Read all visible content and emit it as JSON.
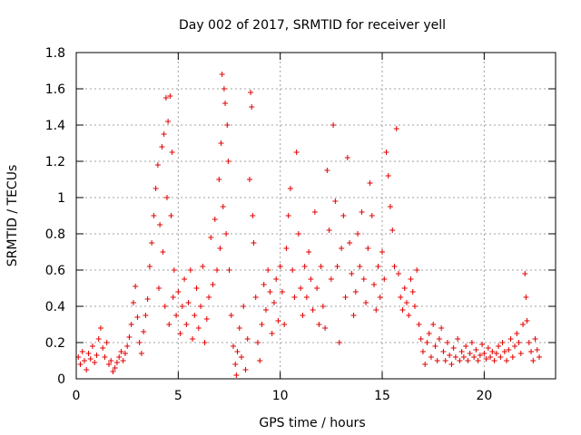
{
  "chart_data": {
    "type": "scatter",
    "title": "Day 002 of 2017, SRMTID for receiver yell",
    "xlabel": "GPS time / hours",
    "ylabel": "SRMTID / TECUs",
    "xlim": [
      0,
      23.5
    ],
    "ylim": [
      0,
      1.8
    ],
    "xticks": [
      0,
      5,
      10,
      15,
      20
    ],
    "xtick_labels": [
      "0",
      "5",
      "10",
      "15",
      "20"
    ],
    "yticks": [
      0,
      0.2,
      0.4,
      0.6,
      0.8,
      1,
      1.2,
      1.4,
      1.6,
      1.8
    ],
    "ytick_labels": [
      "0",
      "0.2",
      "0.4",
      "0.6",
      "0.8",
      "1",
      "1.2",
      "1.4",
      "1.6",
      "1.8"
    ],
    "grid": true,
    "marker": "+",
    "color": "#e00000",
    "series": [
      {
        "name": "SRMTID",
        "points": [
          [
            0.1,
            0.12
          ],
          [
            0.2,
            0.08
          ],
          [
            0.3,
            0.15
          ],
          [
            0.4,
            0.1
          ],
          [
            0.5,
            0.05
          ],
          [
            0.6,
            0.14
          ],
          [
            0.7,
            0.11
          ],
          [
            0.8,
            0.18
          ],
          [
            0.9,
            0.09
          ],
          [
            1.0,
            0.13
          ],
          [
            1.1,
            0.22
          ],
          [
            1.2,
            0.28
          ],
          [
            1.3,
            0.17
          ],
          [
            1.4,
            0.12
          ],
          [
            1.5,
            0.2
          ],
          [
            1.6,
            0.08
          ],
          [
            1.7,
            0.1
          ],
          [
            1.8,
            0.04
          ],
          [
            1.9,
            0.06
          ],
          [
            2.0,
            0.09
          ],
          [
            2.1,
            0.12
          ],
          [
            2.2,
            0.15
          ],
          [
            2.3,
            0.1
          ],
          [
            2.4,
            0.14
          ],
          [
            2.5,
            0.18
          ],
          [
            2.6,
            0.23
          ],
          [
            2.7,
            0.3
          ],
          [
            2.8,
            0.42
          ],
          [
            2.9,
            0.51
          ],
          [
            3.0,
            0.34
          ],
          [
            3.1,
            0.2
          ],
          [
            3.2,
            0.14
          ],
          [
            3.3,
            0.26
          ],
          [
            3.4,
            0.35
          ],
          [
            3.5,
            0.44
          ],
          [
            3.6,
            0.62
          ],
          [
            3.7,
            0.75
          ],
          [
            3.8,
            0.9
          ],
          [
            3.9,
            1.05
          ],
          [
            4.0,
            1.18
          ],
          [
            4.05,
            0.5
          ],
          [
            4.1,
            0.85
          ],
          [
            4.2,
            1.28
          ],
          [
            4.25,
            0.7
          ],
          [
            4.3,
            1.35
          ],
          [
            4.35,
            0.4
          ],
          [
            4.4,
            1.55
          ],
          [
            4.45,
            1.0
          ],
          [
            4.5,
            1.42
          ],
          [
            4.55,
            0.3
          ],
          [
            4.6,
            1.56
          ],
          [
            4.65,
            0.9
          ],
          [
            4.7,
            1.25
          ],
          [
            4.75,
            0.45
          ],
          [
            4.8,
            0.6
          ],
          [
            4.9,
            0.35
          ],
          [
            5.0,
            0.48
          ],
          [
            5.1,
            0.25
          ],
          [
            5.2,
            0.4
          ],
          [
            5.3,
            0.55
          ],
          [
            5.4,
            0.3
          ],
          [
            5.5,
            0.42
          ],
          [
            5.6,
            0.6
          ],
          [
            5.7,
            0.22
          ],
          [
            5.8,
            0.35
          ],
          [
            5.9,
            0.5
          ],
          [
            6.0,
            0.28
          ],
          [
            6.1,
            0.4
          ],
          [
            6.2,
            0.62
          ],
          [
            6.3,
            0.2
          ],
          [
            6.4,
            0.33
          ],
          [
            6.5,
            0.45
          ],
          [
            6.6,
            0.78
          ],
          [
            6.7,
            0.52
          ],
          [
            6.8,
            0.88
          ],
          [
            6.9,
            0.6
          ],
          [
            7.0,
            1.1
          ],
          [
            7.05,
            0.72
          ],
          [
            7.1,
            1.3
          ],
          [
            7.15,
            1.68
          ],
          [
            7.2,
            0.95
          ],
          [
            7.25,
            1.6
          ],
          [
            7.3,
            1.52
          ],
          [
            7.35,
            0.8
          ],
          [
            7.4,
            1.4
          ],
          [
            7.45,
            1.2
          ],
          [
            7.5,
            0.6
          ],
          [
            7.6,
            0.35
          ],
          [
            7.7,
            0.18
          ],
          [
            7.8,
            0.08
          ],
          [
            7.85,
            0.02
          ],
          [
            7.9,
            0.15
          ],
          [
            8.0,
            0.28
          ],
          [
            8.1,
            0.12
          ],
          [
            8.2,
            0.4
          ],
          [
            8.3,
            0.05
          ],
          [
            8.4,
            0.22
          ],
          [
            8.5,
            1.1
          ],
          [
            8.55,
            1.58
          ],
          [
            8.6,
            1.5
          ],
          [
            8.65,
            0.9
          ],
          [
            8.7,
            0.75
          ],
          [
            8.8,
            0.45
          ],
          [
            8.9,
            0.2
          ],
          [
            9.0,
            0.1
          ],
          [
            9.1,
            0.3
          ],
          [
            9.2,
            0.52
          ],
          [
            9.3,
            0.38
          ],
          [
            9.4,
            0.6
          ],
          [
            9.5,
            0.48
          ],
          [
            9.6,
            0.25
          ],
          [
            9.7,
            0.42
          ],
          [
            9.8,
            0.55
          ],
          [
            9.9,
            0.32
          ],
          [
            10.0,
            0.62
          ],
          [
            10.1,
            0.48
          ],
          [
            10.2,
            0.3
          ],
          [
            10.3,
            0.72
          ],
          [
            10.4,
            0.9
          ],
          [
            10.5,
            1.05
          ],
          [
            10.6,
            0.6
          ],
          [
            10.7,
            0.45
          ],
          [
            10.8,
            1.25
          ],
          [
            10.9,
            0.8
          ],
          [
            11.0,
            0.5
          ],
          [
            11.1,
            0.35
          ],
          [
            11.2,
            0.62
          ],
          [
            11.3,
            0.45
          ],
          [
            11.4,
            0.7
          ],
          [
            11.5,
            0.55
          ],
          [
            11.6,
            0.38
          ],
          [
            11.7,
            0.92
          ],
          [
            11.8,
            0.5
          ],
          [
            11.9,
            0.3
          ],
          [
            12.0,
            0.62
          ],
          [
            12.1,
            0.4
          ],
          [
            12.2,
            0.28
          ],
          [
            12.3,
            1.15
          ],
          [
            12.4,
            0.82
          ],
          [
            12.5,
            0.55
          ],
          [
            12.6,
            1.4
          ],
          [
            12.7,
            0.98
          ],
          [
            12.8,
            0.62
          ],
          [
            12.9,
            0.2
          ],
          [
            13.0,
            0.72
          ],
          [
            13.1,
            0.9
          ],
          [
            13.2,
            0.45
          ],
          [
            13.3,
            1.22
          ],
          [
            13.4,
            0.75
          ],
          [
            13.5,
            0.58
          ],
          [
            13.6,
            0.35
          ],
          [
            13.7,
            0.48
          ],
          [
            13.8,
            0.8
          ],
          [
            13.9,
            0.62
          ],
          [
            14.0,
            0.92
          ],
          [
            14.1,
            0.55
          ],
          [
            14.2,
            0.42
          ],
          [
            14.3,
            0.72
          ],
          [
            14.4,
            1.08
          ],
          [
            14.5,
            0.9
          ],
          [
            14.6,
            0.52
          ],
          [
            14.7,
            0.38
          ],
          [
            14.8,
            0.62
          ],
          [
            14.9,
            0.45
          ],
          [
            15.0,
            0.7
          ],
          [
            15.1,
            0.55
          ],
          [
            15.2,
            1.25
          ],
          [
            15.3,
            1.12
          ],
          [
            15.4,
            0.95
          ],
          [
            15.5,
            0.82
          ],
          [
            15.6,
            0.62
          ],
          [
            15.7,
            1.38
          ],
          [
            15.8,
            0.58
          ],
          [
            15.9,
            0.45
          ],
          [
            16.0,
            0.38
          ],
          [
            16.1,
            0.5
          ],
          [
            16.2,
            0.42
          ],
          [
            16.3,
            0.35
          ],
          [
            16.4,
            0.55
          ],
          [
            16.5,
            0.48
          ],
          [
            16.6,
            0.4
          ],
          [
            16.7,
            0.6
          ],
          [
            16.8,
            0.3
          ],
          [
            16.9,
            0.22
          ],
          [
            17.0,
            0.15
          ],
          [
            17.1,
            0.08
          ],
          [
            17.2,
            0.2
          ],
          [
            17.3,
            0.25
          ],
          [
            17.4,
            0.12
          ],
          [
            17.5,
            0.3
          ],
          [
            17.6,
            0.18
          ],
          [
            17.7,
            0.1
          ],
          [
            17.8,
            0.22
          ],
          [
            17.9,
            0.28
          ],
          [
            18.0,
            0.15
          ],
          [
            18.1,
            0.1
          ],
          [
            18.2,
            0.2
          ],
          [
            18.3,
            0.13
          ],
          [
            18.4,
            0.08
          ],
          [
            18.5,
            0.17
          ],
          [
            18.6,
            0.12
          ],
          [
            18.7,
            0.22
          ],
          [
            18.8,
            0.1
          ],
          [
            18.9,
            0.15
          ],
          [
            19.0,
            0.12
          ],
          [
            19.1,
            0.18
          ],
          [
            19.2,
            0.1
          ],
          [
            19.3,
            0.14
          ],
          [
            19.4,
            0.2
          ],
          [
            19.5,
            0.12
          ],
          [
            19.6,
            0.16
          ],
          [
            19.7,
            0.1
          ],
          [
            19.8,
            0.13
          ],
          [
            19.9,
            0.19
          ],
          [
            20.0,
            0.14
          ],
          [
            20.1,
            0.11
          ],
          [
            20.2,
            0.17
          ],
          [
            20.3,
            0.12
          ],
          [
            20.4,
            0.15
          ],
          [
            20.5,
            0.1
          ],
          [
            20.6,
            0.14
          ],
          [
            20.7,
            0.18
          ],
          [
            20.8,
            0.12
          ],
          [
            20.9,
            0.2
          ],
          [
            21.0,
            0.15
          ],
          [
            21.1,
            0.1
          ],
          [
            21.2,
            0.16
          ],
          [
            21.3,
            0.22
          ],
          [
            21.4,
            0.12
          ],
          [
            21.5,
            0.18
          ],
          [
            21.6,
            0.25
          ],
          [
            21.7,
            0.2
          ],
          [
            21.8,
            0.14
          ],
          [
            21.9,
            0.3
          ],
          [
            22.0,
            0.58
          ],
          [
            22.05,
            0.45
          ],
          [
            22.1,
            0.32
          ],
          [
            22.2,
            0.2
          ],
          [
            22.3,
            0.15
          ],
          [
            22.4,
            0.1
          ],
          [
            22.5,
            0.22
          ],
          [
            22.6,
            0.16
          ],
          [
            22.7,
            0.12
          ]
        ]
      }
    ]
  }
}
